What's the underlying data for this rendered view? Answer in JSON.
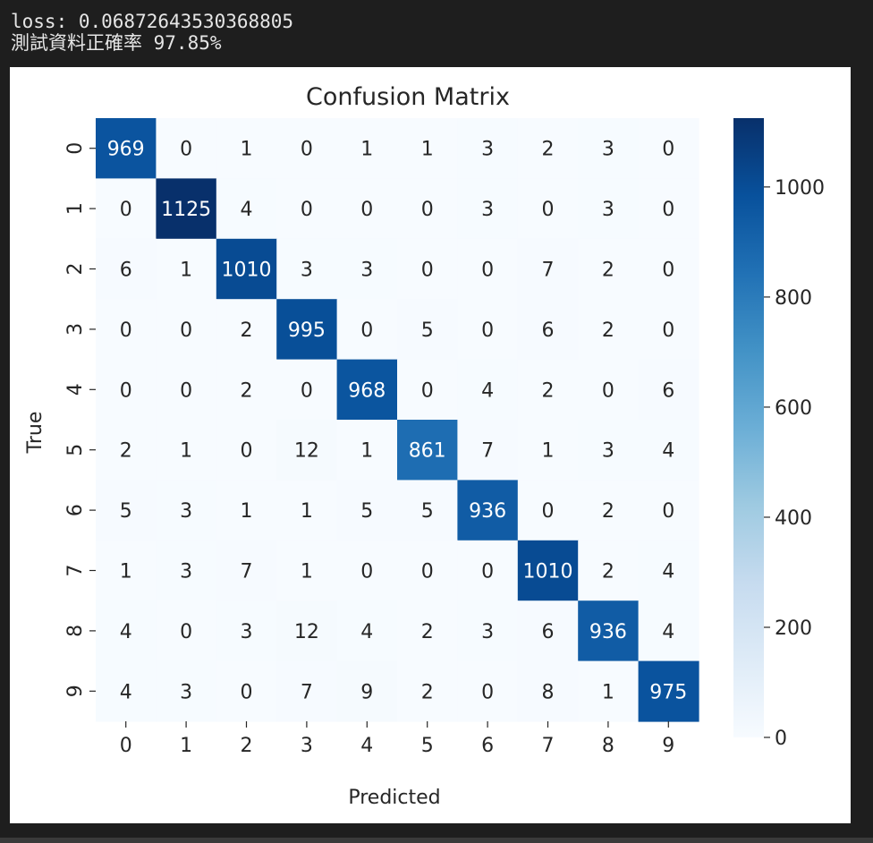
{
  "output": {
    "loss_line": "loss: 0.06872643530368805",
    "accuracy_line": "測試資料正確率 97.85%"
  },
  "chart_data": {
    "type": "heatmap",
    "title": "Confusion Matrix",
    "xlabel": "Predicted",
    "ylabel": "True",
    "x_ticks": [
      "0",
      "1",
      "2",
      "3",
      "4",
      "5",
      "6",
      "7",
      "8",
      "9"
    ],
    "y_ticks": [
      "0",
      "1",
      "2",
      "3",
      "4",
      "5",
      "6",
      "7",
      "8",
      "9"
    ],
    "matrix": [
      [
        969,
        0,
        1,
        0,
        1,
        1,
        3,
        2,
        3,
        0
      ],
      [
        0,
        1125,
        4,
        0,
        0,
        0,
        3,
        0,
        3,
        0
      ],
      [
        6,
        1,
        1010,
        3,
        3,
        0,
        0,
        7,
        2,
        0
      ],
      [
        0,
        0,
        2,
        995,
        0,
        5,
        0,
        6,
        2,
        0
      ],
      [
        0,
        0,
        2,
        0,
        968,
        0,
        4,
        2,
        0,
        6
      ],
      [
        2,
        1,
        0,
        12,
        1,
        861,
        7,
        1,
        3,
        4
      ],
      [
        5,
        3,
        1,
        1,
        5,
        5,
        936,
        0,
        2,
        0
      ],
      [
        1,
        3,
        7,
        1,
        0,
        0,
        0,
        1010,
        2,
        4
      ],
      [
        4,
        0,
        3,
        12,
        4,
        2,
        3,
        6,
        936,
        4
      ],
      [
        4,
        3,
        0,
        7,
        9,
        2,
        0,
        8,
        1,
        975
      ]
    ],
    "colormap": "Blues",
    "colors": {
      "low": "#f7fbff",
      "high": "#08306b",
      "text_dark": "#262626",
      "text_light": "#ffffff"
    },
    "colorbar": {
      "min": 0,
      "max": 1125,
      "ticks": [
        0,
        200,
        400,
        600,
        800,
        1000
      ]
    }
  }
}
